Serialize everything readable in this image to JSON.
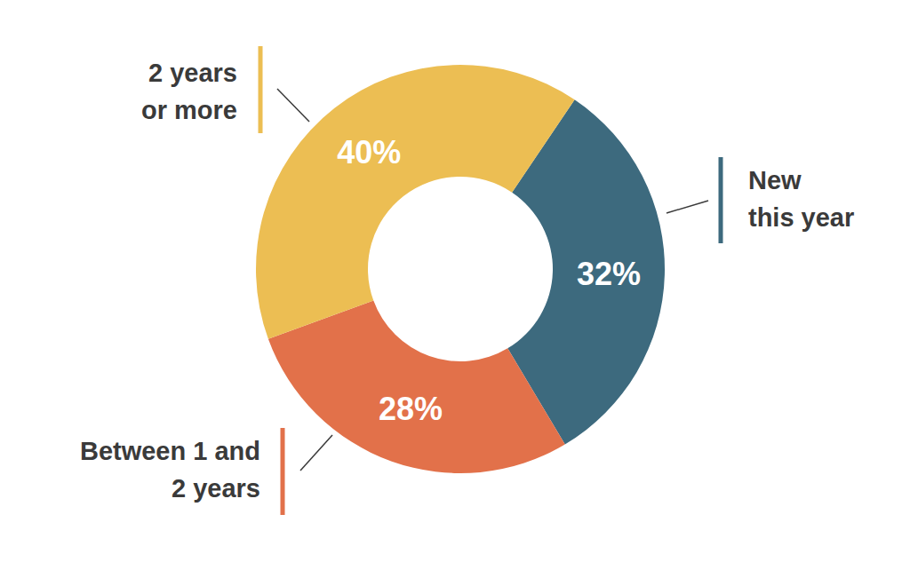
{
  "chart_data": {
    "type": "donut",
    "categories": [
      "New\nthis year",
      "Between 1 and\n2 years",
      "2 years\nor more"
    ],
    "values": [
      32,
      28,
      40
    ],
    "value_labels": [
      "32%",
      "28%",
      "40%"
    ],
    "colors": [
      "#3d6a7e",
      "#e2714a",
      "#ecbe53"
    ],
    "data_labels": true
  }
}
